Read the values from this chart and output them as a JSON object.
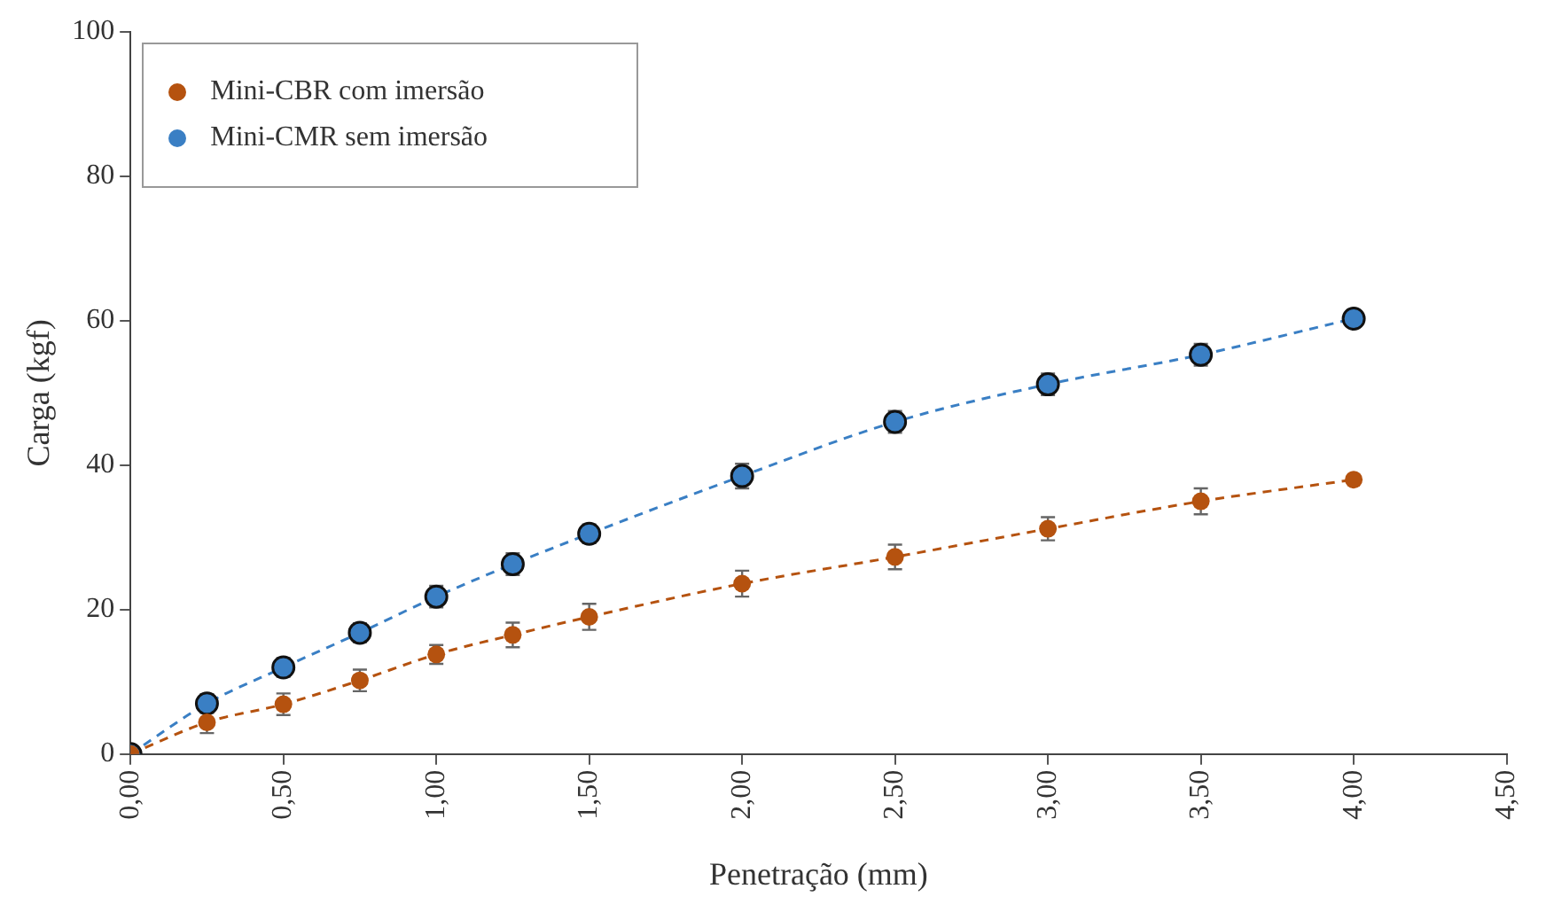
{
  "chart_data": {
    "type": "line",
    "xlabel": "Penetração (mm)",
    "ylabel": "Carga (kgf)",
    "x": [
      0,
      0.25,
      0.5,
      0.75,
      1,
      1.25,
      1.5,
      2,
      2.5,
      3,
      3.5,
      4
    ],
    "series": [
      {
        "name": "Mini-CBR com imersão",
        "color": "#b5520f",
        "values": [
          0,
          4.4,
          6.9,
          10.2,
          13.8,
          16.5,
          19,
          23.6,
          27.3,
          31.2,
          35,
          38
        ],
        "errors": [
          null,
          1.5,
          1.5,
          1.5,
          1.3,
          1.7,
          1.8,
          1.8,
          1.7,
          1.6,
          1.8,
          null
        ]
      },
      {
        "name": "Mini-CMR sem imersão",
        "color": "#3a7fc4",
        "values": [
          0,
          7,
          12,
          16.8,
          21.8,
          26.3,
          30.5,
          38.5,
          46,
          51.2,
          55.3,
          60.3
        ],
        "errors": [
          null,
          1.3,
          1.3,
          1.3,
          1.5,
          1.5,
          1.3,
          1.7,
          1.5,
          1.5,
          1.5,
          null
        ]
      }
    ],
    "xlim": [
      0,
      4.5
    ],
    "xticks": [
      {
        "value": 0,
        "label": "0,00"
      },
      {
        "value": 0.5,
        "label": "0,50"
      },
      {
        "value": 1,
        "label": "1,00"
      },
      {
        "value": 1.5,
        "label": "1,50"
      },
      {
        "value": 2,
        "label": "2,00"
      },
      {
        "value": 2.5,
        "label": "2,50"
      },
      {
        "value": 3,
        "label": "3,00"
      },
      {
        "value": 3.5,
        "label": "3,50"
      },
      {
        "value": 4,
        "label": "4,00"
      },
      {
        "value": 4.5,
        "label": "4,50"
      }
    ],
    "ylim": [
      0,
      100
    ],
    "yticks": [
      0,
      20,
      40,
      60,
      80,
      100
    ],
    "grid": false,
    "legend": "top left",
    "marker": "circle",
    "line_style": "dashed"
  }
}
